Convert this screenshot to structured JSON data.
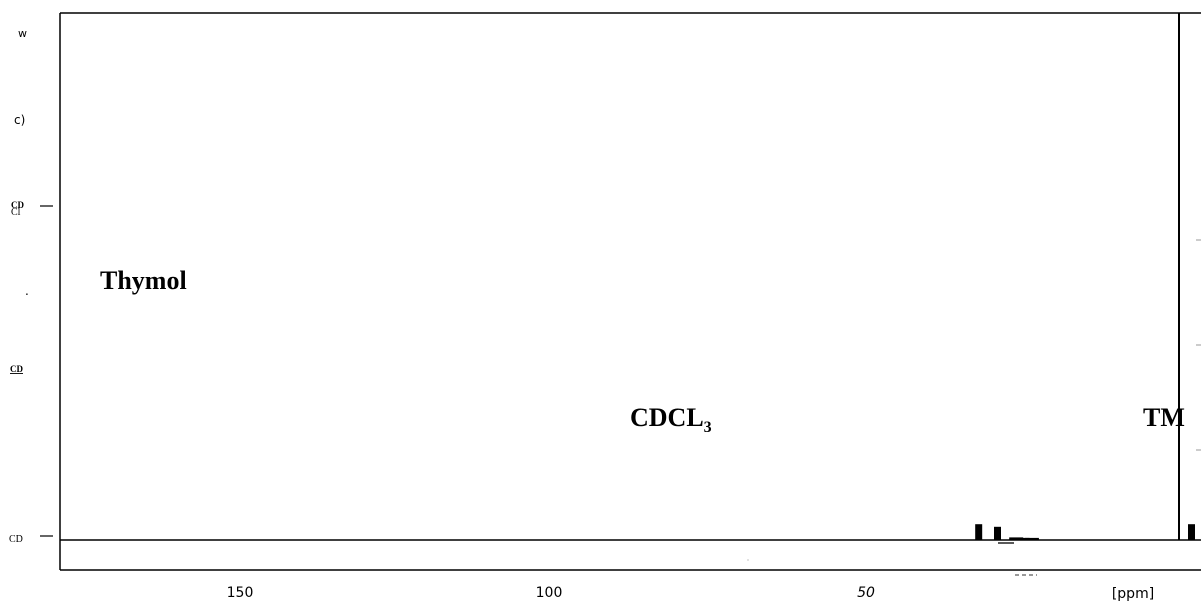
{
  "chart_data": {
    "type": "line",
    "title": "",
    "xlabel": "[ppm]",
    "ylabel": "",
    "x_reversed": true,
    "xlim": [
      173,
      -10
    ],
    "x_ticks": [
      "150",
      "100",
      "50",
      "[ppm]"
    ],
    "x_tick_values": [
      150,
      100,
      50
    ],
    "grid": false,
    "annotations": [
      {
        "text": "Thymol",
        "x": 170
      },
      {
        "text": "CDCL",
        "subscript": "3",
        "x": 77
      },
      {
        "text": "TM",
        "x": 0
      }
    ],
    "side_labels": [
      "w",
      "c)",
      "CD",
      "Cl",
      ".",
      "CD",
      "CD"
    ],
    "series": [
      {
        "peaks_ppm": [
          32,
          29,
          26,
          25,
          23.5,
          0,
          -2,
          -5,
          -8
        ],
        "heights": [
          0.03,
          0.025,
          0.005,
          0.004,
          0.004,
          1.0,
          0.03,
          0.004,
          0.006
        ]
      }
    ]
  }
}
